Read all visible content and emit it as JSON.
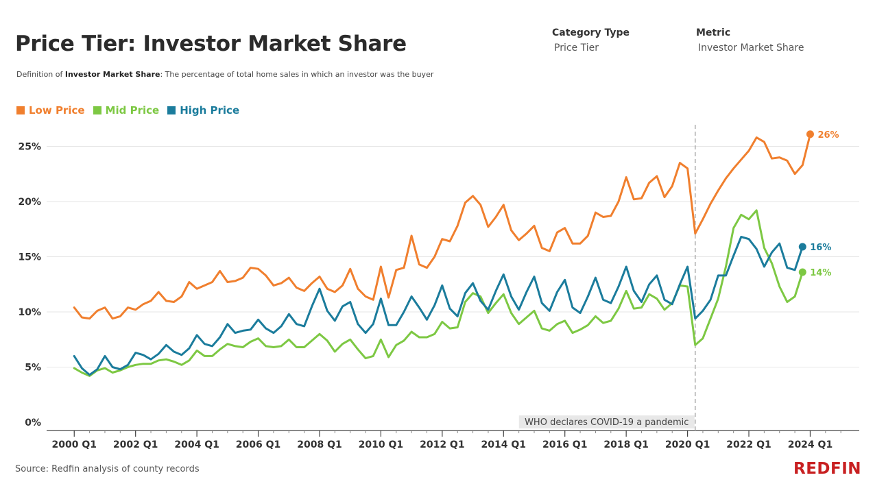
{
  "header": {
    "title": "Price Tier: Investor Market Share",
    "definition_term": "Investor Market Share",
    "definition_prefix": "Definition of ",
    "definition_text": ": The percentage of total home sales in which an investor was the buyer"
  },
  "filters": [
    {
      "label": "Category Type",
      "value": "Price Tier"
    },
    {
      "label": "Metric",
      "value": "Investor Market Share"
    }
  ],
  "colors": {
    "low": "#f07f2e",
    "mid": "#7dc843",
    "high": "#1b7c9c",
    "divider": "#aaaaaa",
    "brand": "#c82021"
  },
  "footer": {
    "source": "Source: Redfin analysis of county records",
    "brand": "REDFIN"
  },
  "chart_data": {
    "type": "line",
    "title": "Price Tier: Investor Market Share",
    "xlabel": "",
    "ylabel": "",
    "x_start": 2000.0,
    "x_step": 0.25,
    "xlim": [
      1999.1,
      2025.6
    ],
    "ylim": [
      0,
      27
    ],
    "y_ticks": [
      0,
      5,
      10,
      15,
      20,
      25
    ],
    "y_tick_labels": [
      "0%",
      "5%",
      "10%",
      "15%",
      "20%",
      "25%"
    ],
    "x_ticks": [
      2000,
      2002,
      2004,
      2006,
      2008,
      2010,
      2012,
      2014,
      2016,
      2018,
      2020,
      2022,
      2024
    ],
    "x_tick_labels": [
      "2000 Q1",
      "2002 Q1",
      "2004 Q1",
      "2006 Q1",
      "2008 Q1",
      "2010 Q1",
      "2012 Q1",
      "2014 Q1",
      "2016 Q1",
      "2018 Q1",
      "2020 Q1",
      "2022 Q1",
      "2024 Q1"
    ],
    "annotation": {
      "x": 2020.25,
      "label": "WHO declares COVID-19 a pandemic"
    },
    "series": [
      {
        "key": "low",
        "name": "Low Price",
        "end_label": "26%",
        "values": [
          10.4,
          9.5,
          9.4,
          10.1,
          10.4,
          9.4,
          9.6,
          10.4,
          10.2,
          10.7,
          11.0,
          11.8,
          11.0,
          10.9,
          11.4,
          12.7,
          12.1,
          12.4,
          12.7,
          13.7,
          12.7,
          12.8,
          13.1,
          14.0,
          13.9,
          13.3,
          12.4,
          12.6,
          13.1,
          12.2,
          11.9,
          12.6,
          13.2,
          12.1,
          11.8,
          12.4,
          13.9,
          12.1,
          11.4,
          11.1,
          14.1,
          11.3,
          13.8,
          14.0,
          16.9,
          14.3,
          14.0,
          15.0,
          16.6,
          16.4,
          17.8,
          19.9,
          20.5,
          19.7,
          17.7,
          18.6,
          19.7,
          17.4,
          16.5,
          17.1,
          17.8,
          15.8,
          15.5,
          17.2,
          17.6,
          16.2,
          16.2,
          16.9,
          19.0,
          18.6,
          18.7,
          20.0,
          22.2,
          20.2,
          20.3,
          21.7,
          22.3,
          20.4,
          21.4,
          23.5,
          23.0,
          17.1,
          18.4,
          19.8,
          21.0,
          22.1,
          23.0,
          23.8,
          24.6,
          25.8,
          25.4,
          23.9,
          24.0,
          23.7,
          22.5,
          23.3,
          26.1
        ]
      },
      {
        "key": "mid",
        "name": "Mid Price",
        "end_label": "14%",
        "values": [
          4.9,
          4.5,
          4.2,
          4.7,
          4.9,
          4.5,
          4.7,
          5.0,
          5.2,
          5.3,
          5.3,
          5.6,
          5.7,
          5.5,
          5.2,
          5.6,
          6.5,
          6.0,
          6.0,
          6.6,
          7.1,
          6.9,
          6.8,
          7.3,
          7.6,
          6.9,
          6.8,
          6.9,
          7.5,
          6.8,
          6.8,
          7.4,
          8.0,
          7.4,
          6.4,
          7.1,
          7.5,
          6.6,
          5.8,
          6.0,
          7.5,
          5.9,
          7.0,
          7.4,
          8.2,
          7.7,
          7.7,
          8.0,
          9.1,
          8.5,
          8.6,
          10.9,
          11.7,
          11.4,
          9.9,
          10.8,
          11.6,
          9.9,
          8.9,
          9.5,
          10.1,
          8.5,
          8.3,
          8.9,
          9.2,
          8.1,
          8.4,
          8.8,
          9.6,
          9.0,
          9.2,
          10.3,
          11.9,
          10.3,
          10.4,
          11.6,
          11.2,
          10.2,
          10.8,
          12.4,
          12.3,
          7.0,
          7.6,
          9.4,
          11.2,
          14.1,
          17.6,
          18.8,
          18.4,
          19.2,
          15.8,
          14.4,
          12.3,
          10.9,
          11.4,
          13.6
        ]
      },
      {
        "key": "high",
        "name": "High Price",
        "end_label": "16%",
        "values": [
          6.0,
          4.9,
          4.3,
          4.8,
          6.0,
          5.0,
          4.8,
          5.2,
          6.3,
          6.1,
          5.7,
          6.2,
          7.0,
          6.4,
          6.1,
          6.7,
          7.9,
          7.1,
          6.9,
          7.7,
          8.9,
          8.1,
          8.3,
          8.4,
          9.3,
          8.5,
          8.1,
          8.7,
          9.8,
          8.9,
          8.7,
          10.5,
          12.1,
          10.1,
          9.2,
          10.5,
          10.9,
          8.9,
          8.1,
          8.9,
          11.2,
          8.8,
          8.8,
          10.0,
          11.4,
          10.4,
          9.3,
          10.6,
          12.4,
          10.3,
          9.6,
          11.7,
          12.6,
          11.0,
          10.2,
          11.9,
          13.4,
          11.4,
          10.2,
          11.8,
          13.2,
          10.8,
          10.1,
          11.8,
          12.9,
          10.4,
          9.9,
          11.4,
          13.1,
          11.1,
          10.8,
          12.3,
          14.1,
          11.9,
          10.9,
          12.5,
          13.3,
          11.1,
          10.7,
          12.5,
          14.1,
          9.4,
          10.1,
          11.1,
          13.3,
          13.3,
          15.1,
          16.8,
          16.6,
          15.7,
          14.1,
          15.4,
          16.2,
          14.0,
          13.8,
          15.9
        ]
      }
    ]
  }
}
